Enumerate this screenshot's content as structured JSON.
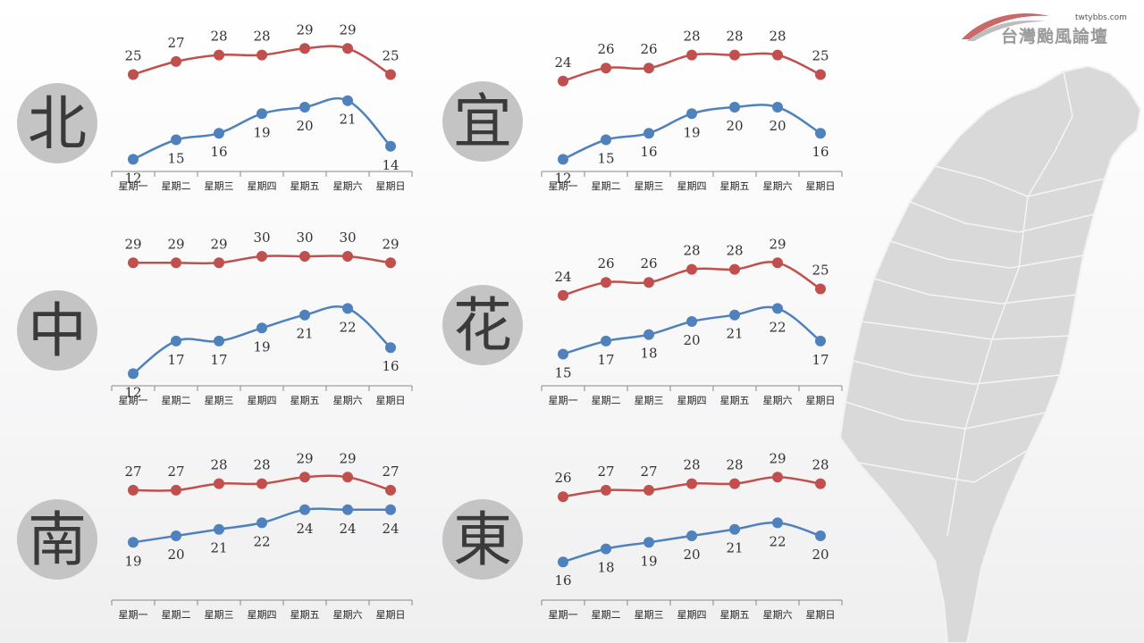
{
  "colors": {
    "high": "#c0504d",
    "low": "#4f81bd",
    "badge": "#c4c4c4",
    "axis": "#888888",
    "map": "#d7d7d7"
  },
  "logo": {
    "url": "twtybbs.com",
    "name": "台灣颱風論壇"
  },
  "days": [
    "星期一",
    "星期二",
    "星期三",
    "星期四",
    "星期五",
    "星期六",
    "星期日"
  ],
  "chart_data": [
    {
      "type": "line",
      "region": "北",
      "categories": [
        "星期一",
        "星期二",
        "星期三",
        "星期四",
        "星期五",
        "星期六",
        "星期日"
      ],
      "series": [
        {
          "values": [
            25,
            27,
            28,
            28,
            29,
            29,
            25
          ]
        },
        {
          "values": [
            12,
            15,
            16,
            19,
            20,
            21,
            14
          ]
        }
      ]
    },
    {
      "type": "line",
      "region": "宜",
      "categories": [
        "星期一",
        "星期二",
        "星期三",
        "星期四",
        "星期五",
        "星期六",
        "星期日"
      ],
      "series": [
        {
          "values": [
            24,
            26,
            26,
            28,
            28,
            28,
            25
          ]
        },
        {
          "values": [
            12,
            15,
            16,
            19,
            20,
            20,
            16
          ]
        }
      ]
    },
    {
      "type": "line",
      "region": "中",
      "categories": [
        "星期一",
        "星期二",
        "星期三",
        "星期四",
        "星期五",
        "星期六",
        "星期日"
      ],
      "series": [
        {
          "values": [
            29,
            29,
            29,
            30,
            30,
            30,
            29
          ]
        },
        {
          "values": [
            12,
            17,
            17,
            19,
            21,
            22,
            16
          ]
        }
      ]
    },
    {
      "type": "line",
      "region": "花",
      "categories": [
        "星期一",
        "星期二",
        "星期三",
        "星期四",
        "星期五",
        "星期六",
        "星期日"
      ],
      "series": [
        {
          "values": [
            24,
            26,
            26,
            28,
            28,
            29,
            25
          ]
        },
        {
          "values": [
            15,
            17,
            18,
            20,
            21,
            22,
            17
          ]
        }
      ]
    },
    {
      "type": "line",
      "region": "南",
      "categories": [
        "星期一",
        "星期二",
        "星期三",
        "星期四",
        "星期五",
        "星期六",
        "星期日"
      ],
      "series": [
        {
          "values": [
            27,
            27,
            28,
            28,
            29,
            29,
            27
          ]
        },
        {
          "values": [
            19,
            20,
            21,
            22,
            24,
            24,
            24
          ]
        }
      ]
    },
    {
      "type": "line",
      "region": "東",
      "categories": [
        "星期一",
        "星期二",
        "星期三",
        "星期四",
        "星期五",
        "星期六",
        "星期日"
      ],
      "series": [
        {
          "values": [
            26,
            27,
            27,
            28,
            28,
            29,
            28
          ]
        },
        {
          "values": [
            16,
            18,
            19,
            20,
            21,
            22,
            20
          ]
        }
      ]
    }
  ]
}
